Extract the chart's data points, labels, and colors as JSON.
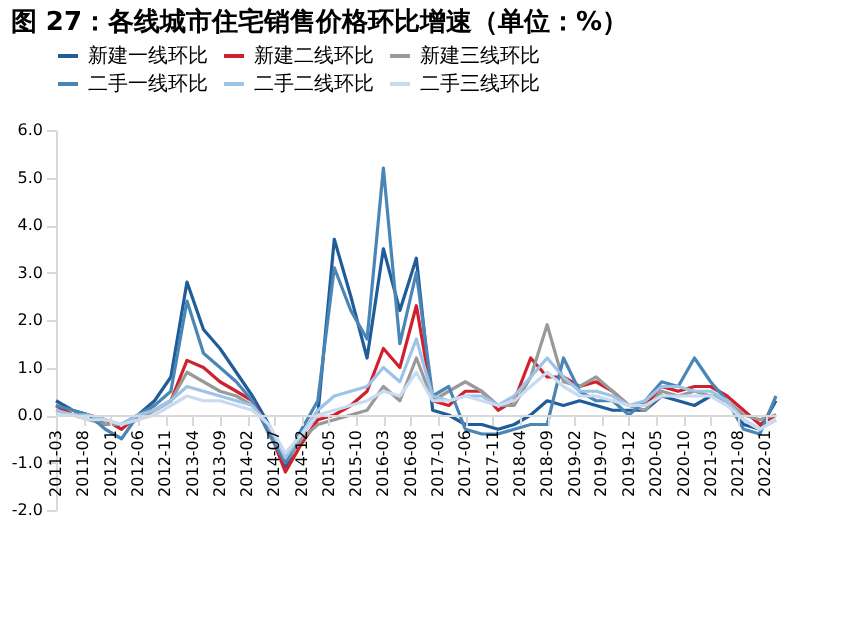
{
  "chart_data": {
    "type": "line",
    "title": "图 27：各线城市住宅销售价格环比增速（单位：%）",
    "x": [
      "2011-03",
      "2011-06",
      "2011-09",
      "2011-12",
      "2012-03",
      "2012-06",
      "2012-09",
      "2012-12",
      "2013-03",
      "2013-06",
      "2013-09",
      "2013-12",
      "2014-03",
      "2014-06",
      "2014-09",
      "2014-12",
      "2015-03",
      "2015-06",
      "2015-09",
      "2015-12",
      "2016-03",
      "2016-06",
      "2016-09",
      "2016-12",
      "2017-03",
      "2017-06",
      "2017-09",
      "2017-12",
      "2018-03",
      "2018-06",
      "2018-09",
      "2018-12",
      "2019-03",
      "2019-06",
      "2019-09",
      "2019-12",
      "2020-03",
      "2020-06",
      "2020-09",
      "2020-12",
      "2021-03",
      "2021-06",
      "2021-09",
      "2021-12",
      "2022-03"
    ],
    "series": [
      {
        "name": "新建一线环比",
        "color": "#1f5c99",
        "values": [
          0.3,
          0.1,
          0.0,
          -0.2,
          -0.2,
          0.0,
          0.3,
          0.8,
          2.8,
          1.8,
          1.4,
          0.9,
          0.4,
          -0.2,
          -1.1,
          -0.4,
          0.0,
          3.7,
          2.5,
          1.2,
          3.5,
          2.2,
          3.3,
          0.1,
          0.0,
          -0.2,
          -0.2,
          -0.3,
          -0.2,
          0.0,
          0.3,
          0.2,
          0.3,
          0.2,
          0.1,
          0.1,
          0.1,
          0.4,
          0.3,
          0.2,
          0.4,
          0.3,
          -0.2,
          -0.3,
          0.3
        ]
      },
      {
        "name": "新建二线环比",
        "color": "#d0202e",
        "values": [
          0.2,
          0.0,
          0.0,
          -0.1,
          -0.3,
          0.0,
          0.1,
          0.3,
          1.15,
          1.0,
          0.7,
          0.5,
          0.3,
          -0.3,
          -1.2,
          -0.6,
          -0.1,
          0.0,
          0.2,
          0.5,
          1.4,
          1.0,
          2.3,
          0.3,
          0.2,
          0.5,
          0.5,
          0.1,
          0.3,
          1.2,
          0.8,
          0.8,
          0.6,
          0.7,
          0.5,
          0.2,
          0.2,
          0.6,
          0.5,
          0.6,
          0.6,
          0.4,
          0.1,
          -0.2,
          0.0
        ]
      },
      {
        "name": "新建三线环比",
        "color": "#999999",
        "values": [
          0.1,
          0.0,
          -0.1,
          -0.2,
          -0.2,
          -0.1,
          0.1,
          0.3,
          0.9,
          0.7,
          0.5,
          0.4,
          0.2,
          -0.3,
          -1.0,
          -0.5,
          -0.2,
          -0.1,
          0.0,
          0.1,
          0.6,
          0.3,
          1.2,
          0.3,
          0.5,
          0.7,
          0.5,
          0.2,
          0.2,
          0.8,
          1.9,
          0.7,
          0.6,
          0.8,
          0.5,
          0.2,
          0.1,
          0.5,
          0.4,
          0.5,
          0.4,
          0.3,
          0.0,
          -0.1,
          0.0
        ]
      },
      {
        "name": "二手一线环比",
        "color": "#4a86b5",
        "values": [
          0.2,
          0.1,
          0.0,
          -0.3,
          -0.5,
          0.0,
          0.2,
          0.5,
          2.4,
          1.3,
          1.0,
          0.7,
          0.3,
          -0.4,
          -1.0,
          -0.3,
          0.3,
          3.1,
          2.2,
          1.6,
          5.2,
          1.5,
          3.0,
          0.4,
          0.6,
          -0.3,
          -0.4,
          -0.4,
          -0.3,
          -0.2,
          -0.2,
          1.2,
          0.5,
          0.3,
          0.3,
          0.0,
          0.3,
          0.7,
          0.6,
          1.2,
          0.7,
          0.3,
          -0.3,
          -0.4,
          0.4
        ]
      },
      {
        "name": "二手二线环比",
        "color": "#9dc3e6",
        "values": [
          0.1,
          0.0,
          0.0,
          -0.1,
          -0.2,
          0.0,
          0.1,
          0.3,
          0.6,
          0.5,
          0.4,
          0.3,
          0.2,
          -0.2,
          -0.9,
          -0.4,
          0.1,
          0.4,
          0.5,
          0.6,
          1.0,
          0.7,
          1.6,
          0.4,
          0.3,
          0.4,
          0.4,
          0.2,
          0.4,
          0.8,
          1.2,
          0.8,
          0.5,
          0.5,
          0.4,
          0.2,
          0.3,
          0.6,
          0.6,
          0.5,
          0.5,
          0.3,
          -0.1,
          -0.3,
          -0.1
        ]
      },
      {
        "name": "二手三线环比",
        "color": "#c9dbef",
        "values": [
          0.0,
          0.0,
          -0.1,
          -0.1,
          -0.2,
          -0.1,
          0.0,
          0.2,
          0.4,
          0.3,
          0.3,
          0.2,
          0.1,
          -0.2,
          -0.8,
          -0.4,
          0.0,
          0.1,
          0.2,
          0.3,
          0.5,
          0.4,
          0.9,
          0.3,
          0.3,
          0.4,
          0.3,
          0.2,
          0.3,
          0.6,
          0.9,
          0.6,
          0.4,
          0.4,
          0.3,
          0.2,
          0.2,
          0.4,
          0.4,
          0.4,
          0.4,
          0.2,
          -0.1,
          -0.3,
          -0.1
        ]
      }
    ],
    "xlim": [
      "2011-03",
      "2022-03"
    ],
    "xticks": [
      "2011-03",
      "2011-08",
      "2012-01",
      "2012-06",
      "2012-11",
      "2013-04",
      "2013-09",
      "2014-02",
      "2014-07",
      "2014-12",
      "2015-05",
      "2015-10",
      "2016-03",
      "2016-08",
      "2017-01",
      "2017-06",
      "2017-11",
      "2018-04",
      "2018-09",
      "2019-02",
      "2019-07",
      "2019-12",
      "2020-05",
      "2020-10",
      "2021-03",
      "2021-08",
      "2022-01"
    ],
    "ylim": [
      -2.0,
      6.0
    ],
    "yticks": [
      {
        "value": -2,
        "label": "-2.0"
      },
      {
        "value": -1,
        "label": "-1.0"
      },
      {
        "value": 0,
        "label": "0.0"
      },
      {
        "value": 1,
        "label": "1.0"
      },
      {
        "value": 2,
        "label": "2.0"
      },
      {
        "value": 3,
        "label": "3.0"
      },
      {
        "value": 4,
        "label": "4.0"
      },
      {
        "value": 5,
        "label": "5.0"
      },
      {
        "value": 6,
        "label": "6.0"
      }
    ],
    "grid": false,
    "legend": "top",
    "marker": "none",
    "line_style": "solid"
  }
}
